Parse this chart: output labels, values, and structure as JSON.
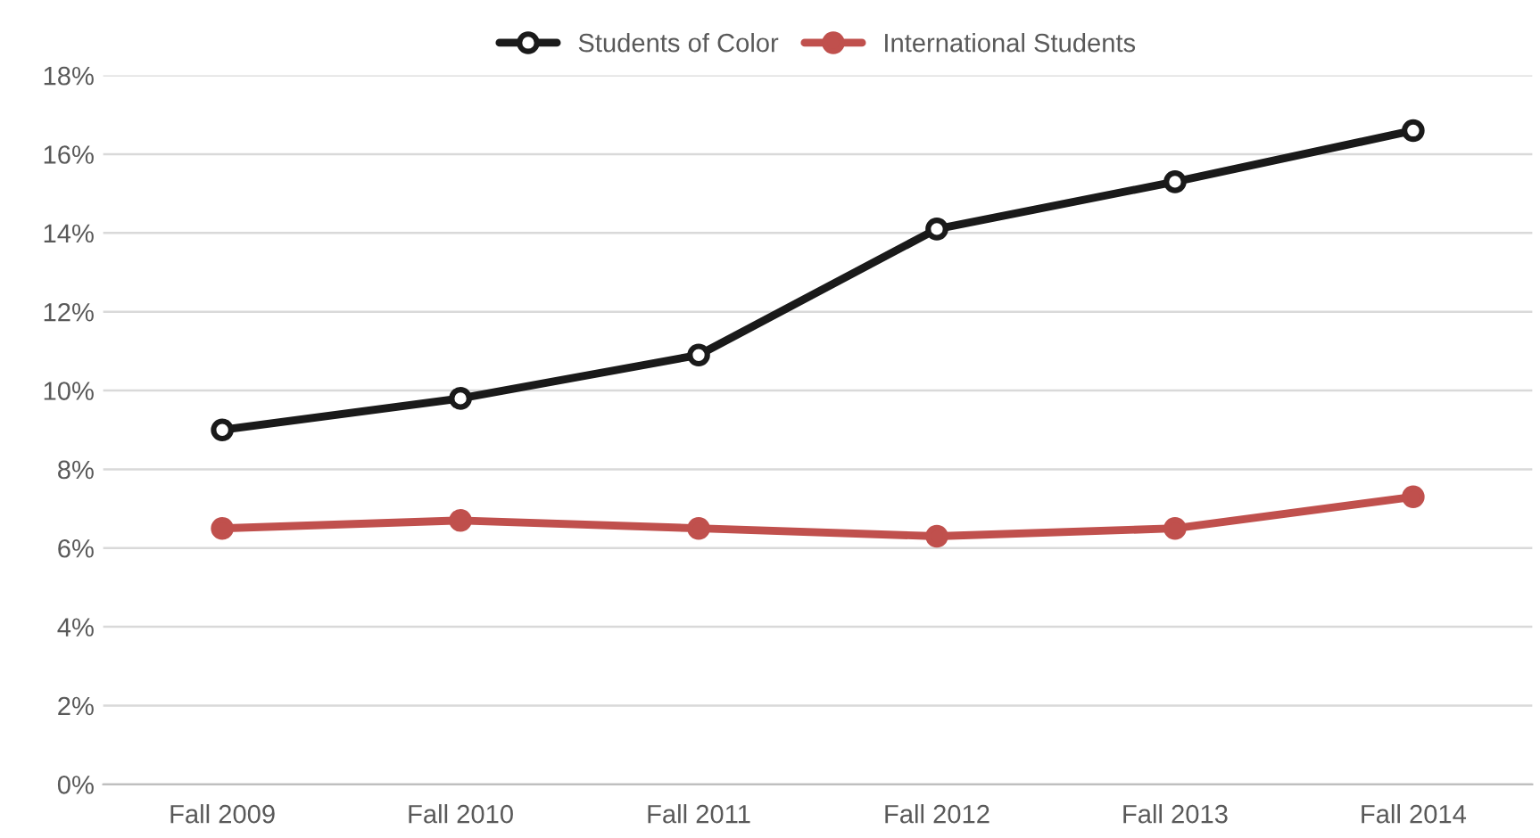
{
  "chart_data": {
    "type": "line",
    "categories": [
      "Fall 2009",
      "Fall 2010",
      "Fall 2011",
      "Fall 2012",
      "Fall 2013",
      "Fall 2014"
    ],
    "series": [
      {
        "name": "Students of Color",
        "color": "#1a1a1a",
        "values": [
          9.0,
          9.8,
          10.9,
          14.1,
          15.3,
          16.6
        ]
      },
      {
        "name": "International Students",
        "color": "#c0504d",
        "values": [
          6.5,
          6.7,
          6.5,
          6.3,
          6.5,
          7.3
        ]
      }
    ],
    "ylim": [
      0,
      18
    ],
    "yticks": [
      {
        "value": 0,
        "label": "0%"
      },
      {
        "value": 2,
        "label": "2%"
      },
      {
        "value": 4,
        "label": "4%"
      },
      {
        "value": 6,
        "label": "6%"
      },
      {
        "value": 8,
        "label": "8%"
      },
      {
        "value": 10,
        "label": "10%"
      },
      {
        "value": 12,
        "label": "12%"
      },
      {
        "value": 14,
        "label": "14%"
      },
      {
        "value": 16,
        "label": "16%"
      },
      {
        "value": 18,
        "label": "18%"
      }
    ],
    "grid": "y",
    "legend": "top",
    "marker": "circle",
    "line_style": "solid"
  }
}
